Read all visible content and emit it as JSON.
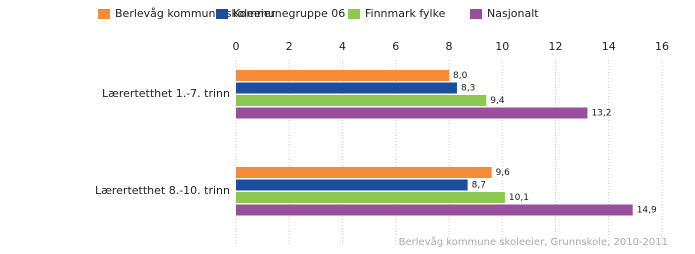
{
  "chart_data": {
    "type": "hbar",
    "categories": [
      "Lærertetthet 1.-7. trinn",
      "Lærertetthet 8.-10. trinn"
    ],
    "series": [
      {
        "name": "Berlevåg kommune skoleeier",
        "color": "#f58a3a",
        "values": [
          8.0,
          9.6
        ],
        "value_labels": [
          "8,0",
          "9,6"
        ]
      },
      {
        "name": "Kommunegruppe 06",
        "color": "#1c4e9c",
        "values": [
          8.3,
          8.7
        ],
        "value_labels": [
          "8,3",
          "8,7"
        ]
      },
      {
        "name": "Finnmark fylke",
        "color": "#8dc951",
        "values": [
          9.4,
          10.1
        ],
        "value_labels": [
          "9,4",
          "10,1"
        ]
      },
      {
        "name": "Nasjonalt",
        "color": "#9a4f9c",
        "values": [
          13.2,
          14.9
        ],
        "value_labels": [
          "13,2",
          "14,9"
        ]
      }
    ],
    "xlim": [
      0,
      16
    ],
    "xticks": [
      0,
      2,
      4,
      6,
      8,
      10,
      12,
      14,
      16
    ],
    "grid": true,
    "source": "Berlevåg kommune skoleeier, Grunnskole, 2010-2011"
  }
}
